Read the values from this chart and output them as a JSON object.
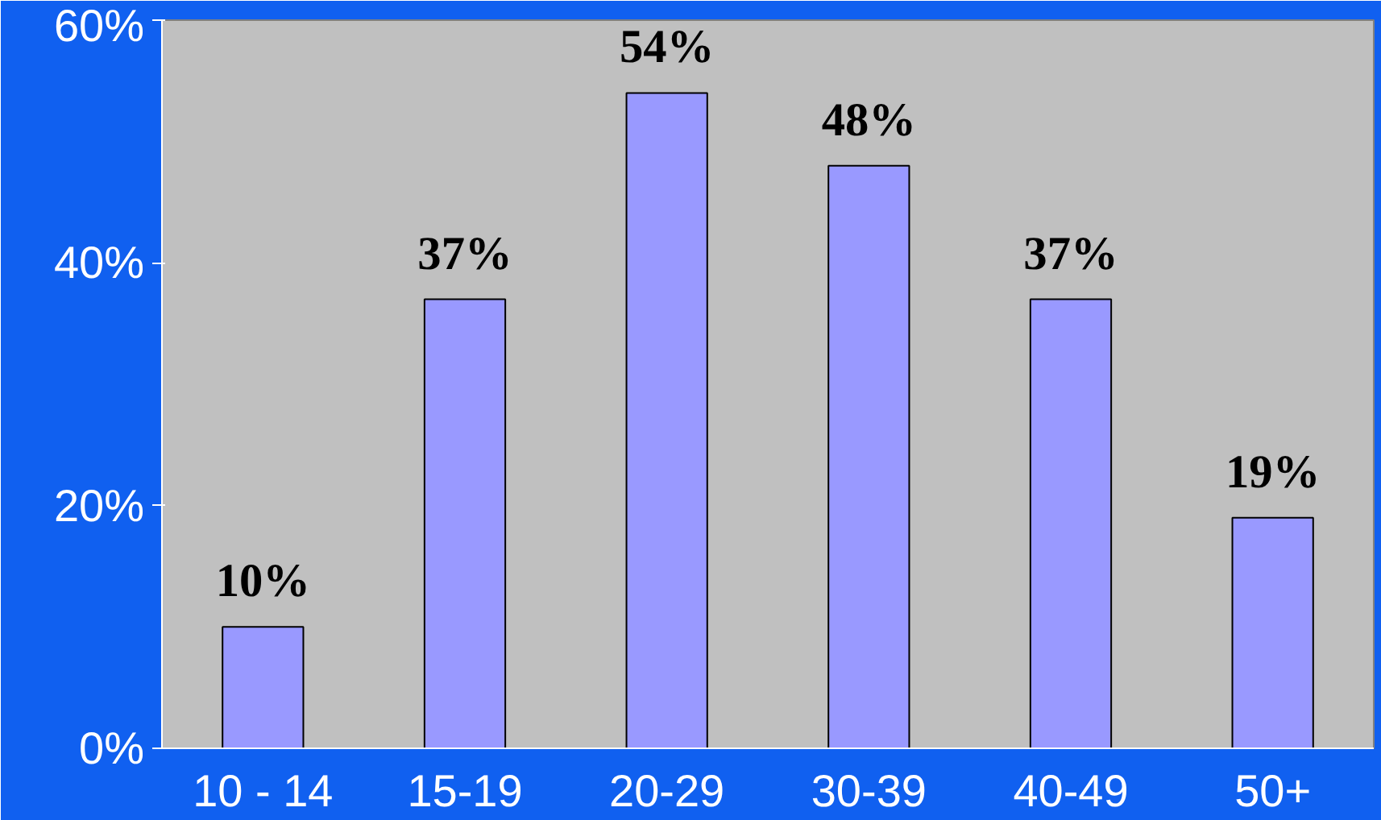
{
  "chart_data": {
    "type": "bar",
    "categories": [
      "10 - 14",
      "15-19",
      "20-29",
      "30-39",
      "40-49",
      "50+"
    ],
    "values": [
      10,
      37,
      54,
      48,
      37,
      19
    ],
    "color": "#9999ff",
    "value_labels": [
      "10%",
      "37%",
      "54%",
      "48%",
      "37%",
      "19%"
    ],
    "ylim": [
      0,
      60
    ],
    "yticks": [
      {
        "value": 0,
        "label": "0%"
      },
      {
        "value": 20,
        "label": "20%"
      },
      {
        "value": 40,
        "label": "40%"
      },
      {
        "value": 60,
        "label": "60%"
      }
    ]
  }
}
